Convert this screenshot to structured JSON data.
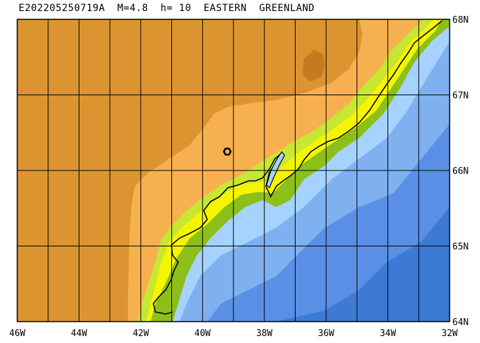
{
  "title": "E202205250719A  M=4.8  h= 10  EASTERN  GREENLAND",
  "axes": {
    "x_ticks": [
      "46W",
      "44W",
      "42W",
      "40W",
      "38W",
      "36W",
      "34W",
      "32W"
    ],
    "y_ticks": [
      "68N",
      "67N",
      "66N",
      "65N",
      "64N"
    ]
  },
  "extent": {
    "lon_min": -46,
    "lon_max": -32,
    "lat_min": 64,
    "lat_max": 68
  },
  "event": {
    "lon": -39.2,
    "lat": 66.25,
    "marker": "hexagon-epicenter-icon"
  },
  "colors": {
    "land_high": "#dc9430",
    "land_low": "#f7b04f",
    "land_peak": "#c47a1f",
    "coast_lime": "#c8e632",
    "coast_yellow": "#f5f500",
    "coast_green": "#8cbf1a",
    "shelf_light": "#a6d2ff",
    "sea_mid": "#7fb0f0",
    "sea_deep": "#5a8fe6",
    "sea_deepest": "#3d7ad6",
    "grid": "#000000",
    "coastline": "#000000"
  }
}
